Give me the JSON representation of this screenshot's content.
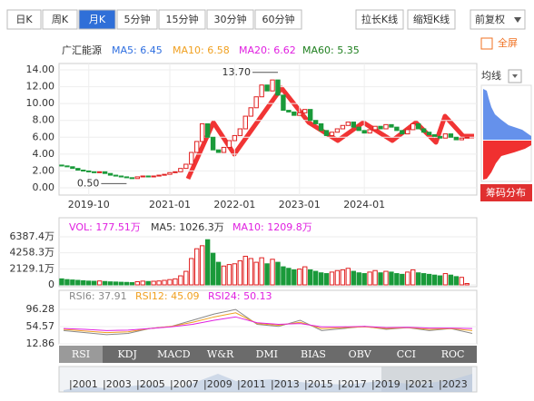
{
  "tabs": [
    "日K",
    "周K",
    "月K",
    "5分钟",
    "15分钟",
    "30分钟",
    "60分钟"
  ],
  "selected_tab": 2,
  "buttons": [
    "拉长K线",
    "缩短K线"
  ],
  "adjust": "前复权",
  "fullscreen": "全屏",
  "ma_select": "均线",
  "chip_button": "筹码分布",
  "main": {
    "name": "广汇能源",
    "legend": [
      {
        "label": "MA5: 6.45",
        "color": "#2f6fe0"
      },
      {
        "label": "MA10: 6.58",
        "color": "#f0a020"
      },
      {
        "label": "MA20: 6.62",
        "color": "#e020e0"
      },
      {
        "label": "MA60: 5.35",
        "color": "#208020"
      }
    ],
    "ylim": [
      0,
      14
    ],
    "yticks": [
      {
        "value": 14,
        "label": "14.00"
      },
      {
        "value": 12,
        "label": "12.00"
      },
      {
        "value": 10,
        "label": "10.00"
      },
      {
        "value": 8,
        "label": "8.00"
      },
      {
        "value": 6,
        "label": "6.00"
      },
      {
        "value": 4,
        "label": "4.00"
      },
      {
        "value": 2,
        "label": "2.00"
      },
      {
        "value": 0,
        "label": "0.00"
      }
    ],
    "xticks": [
      {
        "index": 5,
        "label": "2019-10"
      },
      {
        "index": 20,
        "label": "2021-01"
      },
      {
        "index": 32,
        "label": "2022-01"
      },
      {
        "index": 44,
        "label": "2023-01"
      },
      {
        "index": 56,
        "label": "2024-01"
      }
    ],
    "annotations": [
      {
        "label": "13.70",
        "value": 13.7,
        "index": 40
      },
      {
        "label": "0.50",
        "value": 0.5,
        "index": 12
      }
    ],
    "candles": [
      [
        2.7,
        2.6
      ],
      [
        2.6,
        2.5
      ],
      [
        2.5,
        2.3
      ],
      [
        2.3,
        2.1
      ],
      [
        2.1,
        2.0
      ],
      [
        2.0,
        1.9
      ],
      [
        1.9,
        1.8
      ],
      [
        1.8,
        1.9
      ],
      [
        1.9,
        1.7
      ],
      [
        1.7,
        1.5
      ],
      [
        1.5,
        1.4
      ],
      [
        1.4,
        1.3
      ],
      [
        1.3,
        1.2
      ],
      [
        1.2,
        1.1
      ],
      [
        1.1,
        1.3
      ],
      [
        1.3,
        1.4
      ],
      [
        1.4,
        1.3
      ],
      [
        1.3,
        1.4
      ],
      [
        1.4,
        1.5
      ],
      [
        1.5,
        1.6
      ],
      [
        1.6,
        1.8
      ],
      [
        1.8,
        1.9
      ],
      [
        1.9,
        2.3
      ],
      [
        2.3,
        2.8
      ],
      [
        2.8,
        4.2
      ],
      [
        4.2,
        5.5
      ],
      [
        5.5,
        7.6
      ],
      [
        7.6,
        6.0
      ],
      [
        6.0,
        4.5
      ],
      [
        4.5,
        4.2
      ],
      [
        4.2,
        4.8
      ],
      [
        4.8,
        5.6
      ],
      [
        5.6,
        6.2
      ],
      [
        6.2,
        7.0
      ],
      [
        7.0,
        8.5
      ],
      [
        8.5,
        9.5
      ],
      [
        9.5,
        10.8
      ],
      [
        10.8,
        12.2
      ],
      [
        12.2,
        11.5
      ],
      [
        11.5,
        12.8
      ],
      [
        12.8,
        11.0
      ],
      [
        11.0,
        9.2
      ],
      [
        9.2,
        9.0
      ],
      [
        9.0,
        8.6
      ],
      [
        8.6,
        8.9
      ],
      [
        8.9,
        9.3
      ],
      [
        9.3,
        8.0
      ],
      [
        8.0,
        7.6
      ],
      [
        7.6,
        6.8
      ],
      [
        6.8,
        6.2
      ],
      [
        6.2,
        6.6
      ],
      [
        6.6,
        7.0
      ],
      [
        7.0,
        7.4
      ],
      [
        7.4,
        7.8
      ],
      [
        7.8,
        7.2
      ],
      [
        7.2,
        6.8
      ],
      [
        6.8,
        6.5
      ],
      [
        6.5,
        6.9
      ],
      [
        6.9,
        7.3
      ],
      [
        7.3,
        7.0
      ],
      [
        7.0,
        7.5
      ],
      [
        7.5,
        7.2
      ],
      [
        7.2,
        6.8
      ],
      [
        6.8,
        6.4
      ],
      [
        6.4,
        6.9
      ],
      [
        6.9,
        7.6
      ],
      [
        7.6,
        7.0
      ],
      [
        7.0,
        6.6
      ],
      [
        6.6,
        6.3
      ],
      [
        6.3,
        6.1
      ],
      [
        6.1,
        5.9
      ],
      [
        5.9,
        6.4
      ],
      [
        6.4,
        6.0
      ],
      [
        6.0,
        5.7
      ],
      [
        5.7,
        5.9
      ],
      [
        5.9,
        6.0
      ]
    ]
  },
  "volume": {
    "legend": [
      {
        "label": "VOL: 177.51万",
        "color": "#e020e0"
      },
      {
        "label": "MA5: 1026.3万",
        "color": "#333333"
      },
      {
        "label": "MA10: 1209.8万",
        "color": "#e020e0"
      }
    ],
    "ylim": [
      0,
      6387.4
    ],
    "yticks": [
      {
        "value": 6387.4,
        "label": "6387.4万"
      },
      {
        "value": 4258.3,
        "label": "4258.3万"
      },
      {
        "value": 2129.1,
        "label": "2129.1万"
      },
      0
    ],
    "values": [
      800,
      700,
      650,
      600,
      550,
      500,
      480,
      520,
      450,
      400,
      380,
      350,
      330,
      300,
      420,
      500,
      450,
      480,
      520,
      600,
      700,
      800,
      1200,
      1800,
      3500,
      4800,
      5200,
      6000,
      4200,
      3000,
      2500,
      2700,
      2800,
      3200,
      3800,
      3500,
      3000,
      3600,
      2800,
      3400,
      3000,
      2400,
      2200,
      2000,
      2100,
      2400,
      2000,
      1800,
      1600,
      1500,
      1700,
      1900,
      2000,
      2200,
      1800,
      1600,
      1500,
      1700,
      1900,
      1600,
      1800,
      1700,
      1500,
      1400,
      1700,
      2000,
      1600,
      1500,
      1400,
      1300,
      1200,
      1500,
      1300,
      1100,
      1000,
      177.51
    ]
  },
  "rsi": {
    "ylim": [
      12.86,
      96.28
    ],
    "yticks": [
      96.28,
      54.57,
      12.86
    ],
    "series": [
      {
        "name": "RSI6: 37.91",
        "color": "#888888",
        "values": [
          45,
          40,
          35,
          38,
          50,
          55,
          70,
          85,
          96,
          60,
          55,
          70,
          45,
          50,
          55,
          48,
          52,
          45,
          50,
          38
        ]
      },
      {
        "name": "RSI12: 45.09",
        "color": "#f0a020",
        "values": [
          48,
          44,
          40,
          42,
          50,
          55,
          65,
          78,
          88,
          62,
          58,
          65,
          50,
          52,
          54,
          50,
          52,
          48,
          50,
          45
        ]
      },
      {
        "name": "RSI24: 50.13",
        "color": "#e020e0",
        "values": [
          50,
          48,
          45,
          46,
          50,
          54,
          60,
          70,
          78,
          64,
          60,
          62,
          54,
          54,
          55,
          52,
          53,
          51,
          51,
          50
        ]
      }
    ]
  },
  "indicators": [
    "RSI",
    "KDJ",
    "MACD",
    "W&R",
    "DMI",
    "BIAS",
    "OBV",
    "CCI",
    "ROC"
  ],
  "timeline": [
    "|2001",
    "|2003",
    "|2005",
    "|2007",
    "|2009",
    "|2011",
    "|2013",
    "|2015",
    "|2017",
    "|2019",
    "|2021",
    "|2023"
  ]
}
